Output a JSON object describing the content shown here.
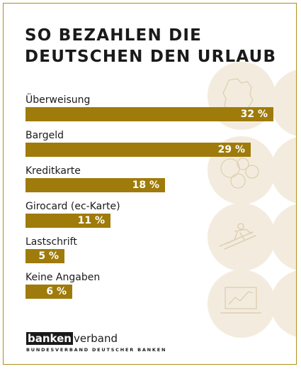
{
  "title_lines": [
    "SO BEZAHLEN DIE",
    "DEUTSCHEN DEN URLAUB"
  ],
  "colors": {
    "bar": "#9e7b0a",
    "circle": "#f3ecde",
    "icon": "#ddd0b3",
    "frame": "#b08f1c",
    "text": "#1a1a1a"
  },
  "chart_data": {
    "type": "bar",
    "orientation": "horizontal",
    "title": "SO BEZAHLEN DIE DEUTSCHEN DEN URLAUB",
    "categories": [
      "Überweisung",
      "Bargeld",
      "Kreditkarte",
      "Girocard (ec-Karte)",
      "Lastschrift",
      "Keine Angaben"
    ],
    "values": [
      32,
      29,
      18,
      11,
      5,
      6
    ],
    "value_labels": [
      "32 %",
      "29 %",
      "18 %",
      "11 %",
      "5 %",
      "6 %"
    ],
    "unit": "%",
    "grid": false,
    "legend": "none"
  },
  "decor_icons": [
    "germany-map-icon",
    "coins-icon",
    "skier-icon",
    "laptop-chart-icon"
  ],
  "logo": {
    "bank": "banken",
    "verband": "verband",
    "subtitle": "BUNDESVERBAND DEUTSCHER BANKEN"
  }
}
